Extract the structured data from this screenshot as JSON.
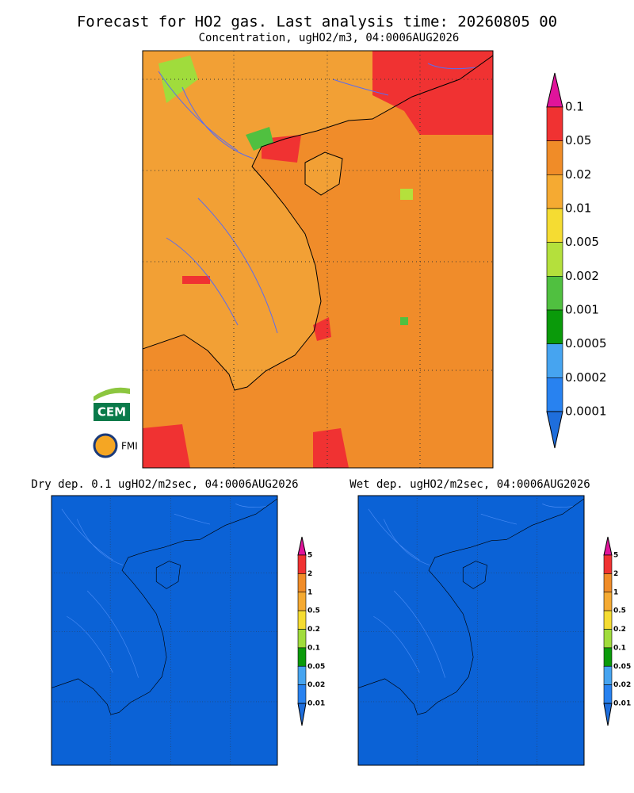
{
  "header": {
    "title": "Forecast for HO2 gas. Last analysis time: 20260805 00",
    "subtitle": "Concentration, ugHO2/m3, 04:0006AUG2026"
  },
  "main_legend": {
    "labels": [
      "0.1",
      "0.05",
      "0.02",
      "0.01",
      "0.005",
      "0.002",
      "0.001",
      "0.0005",
      "0.0002",
      "0.0001"
    ],
    "colors": [
      "#e0149b",
      "#f03232",
      "#f08c28",
      "#f5aa32",
      "#f5dc32",
      "#b4e03c",
      "#50c040",
      "#0a9a0a",
      "#46a4f0",
      "#2882f0",
      "#1e6edc"
    ]
  },
  "panels": [
    {
      "title": "Dry dep. 0.1 ugHO2/m2sec, 04:0006AUG2026"
    },
    {
      "title": "Wet dep. ugHO2/m2sec, 04:0006AUG2026"
    }
  ],
  "small_legend": {
    "labels": [
      "5",
      "2",
      "1",
      "0.5",
      "0.2",
      "0.1",
      "0.05",
      "0.02",
      "0.01"
    ],
    "colors": [
      "#e0149b",
      "#f03232",
      "#f08c28",
      "#f5aa32",
      "#f5dc32",
      "#a0dc3c",
      "#0a9a0a",
      "#46a4f0",
      "#2882f0",
      "#1e6edc"
    ]
  },
  "logos": {
    "cem": "CEM",
    "fmi": "FMI"
  }
}
